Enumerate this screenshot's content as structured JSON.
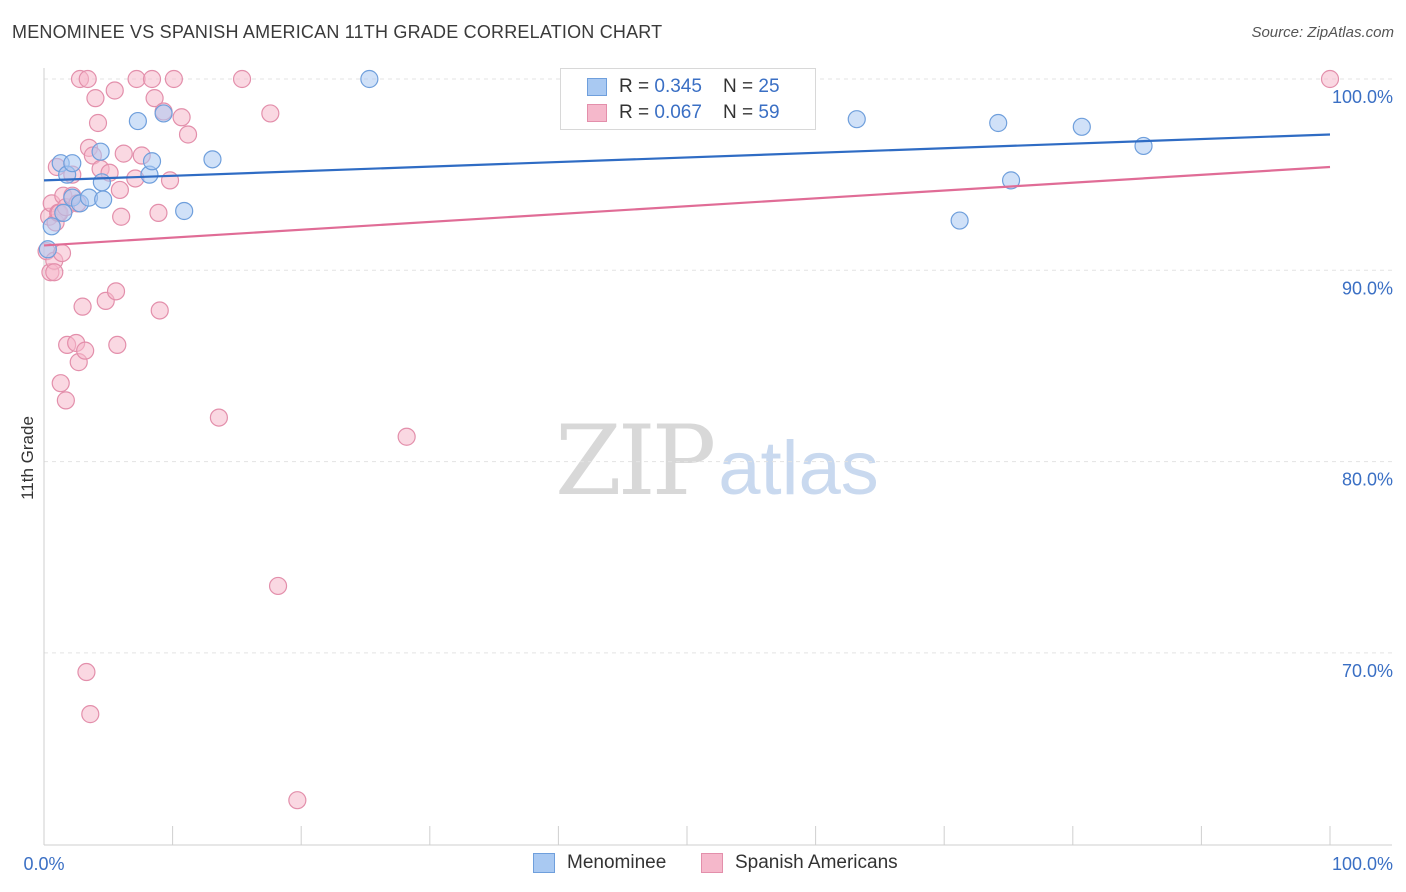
{
  "title": "MENOMINEE VS SPANISH AMERICAN 11TH GRADE CORRELATION CHART",
  "source": "Source: ZipAtlas.com",
  "watermark": {
    "zip": "ZIP",
    "atlas": "atlas"
  },
  "legend_top": [
    {
      "r_label": "R = ",
      "r_value": "0.345",
      "n_label": "N = ",
      "n_value": "25"
    },
    {
      "r_label": "R = ",
      "r_value": "0.067",
      "n_label": "N = ",
      "n_value": "59"
    }
  ],
  "legend_bottom": [
    "Menominee",
    "Spanish Americans"
  ],
  "colors": {
    "menominee_fill": "#a9c9f2",
    "menominee_stroke": "#6f9fdc",
    "menominee_line": "#2f6cc4",
    "spanish_fill": "#f5b8cb",
    "spanish_stroke": "#e38fab",
    "spanish_line": "#e06c96",
    "axis_label": "#3a6fc4",
    "grid": "#e3e3e3"
  },
  "chart_data": {
    "type": "scatter",
    "title": "MENOMINEE VS SPANISH AMERICAN 11TH GRADE CORRELATION CHART",
    "xlabel": "",
    "ylabel": "11th Grade",
    "xlim": [
      0,
      100
    ],
    "ylim": [
      61,
      101.5
    ],
    "x_tick_labels": [
      "0.0%",
      "100.0%"
    ],
    "y_ticks": [
      100,
      90,
      80,
      70
    ],
    "y_tick_labels": [
      "100.0%",
      "90.0%",
      "80.0%",
      "70.0%"
    ],
    "series": [
      {
        "name": "Menominee",
        "r": 0.345,
        "n": 25,
        "trend": [
          [
            0,
            94.7
          ],
          [
            100,
            97.1
          ]
        ],
        "points": [
          [
            0.3,
            91.1
          ],
          [
            0.6,
            92.3
          ],
          [
            1.3,
            95.6
          ],
          [
            1.5,
            93.0
          ],
          [
            1.8,
            95.0
          ],
          [
            2.2,
            93.8
          ],
          [
            2.2,
            95.6
          ],
          [
            2.8,
            93.5
          ],
          [
            3.5,
            93.8
          ],
          [
            4.4,
            96.2
          ],
          [
            4.5,
            94.6
          ],
          [
            4.6,
            93.7
          ],
          [
            7.3,
            97.8
          ],
          [
            8.2,
            95.0
          ],
          [
            8.4,
            95.7
          ],
          [
            9.3,
            98.2
          ],
          [
            10.9,
            93.1
          ],
          [
            13.1,
            95.8
          ],
          [
            25.3,
            100.0
          ],
          [
            63.2,
            97.9
          ],
          [
            71.2,
            92.6
          ],
          [
            74.2,
            97.7
          ],
          [
            75.2,
            94.7
          ],
          [
            80.7,
            97.5
          ],
          [
            85.5,
            96.5
          ]
        ]
      },
      {
        "name": "Spanish Americans",
        "r": 0.067,
        "n": 59,
        "trend": [
          [
            0,
            91.3
          ],
          [
            100,
            95.4
          ]
        ],
        "points": [
          [
            0.2,
            91.0
          ],
          [
            0.4,
            92.8
          ],
          [
            0.5,
            89.9
          ],
          [
            0.6,
            93.5
          ],
          [
            0.8,
            90.5
          ],
          [
            0.8,
            89.9
          ],
          [
            0.9,
            92.5
          ],
          [
            1.0,
            95.4
          ],
          [
            1.1,
            93.0
          ],
          [
            1.2,
            93.0
          ],
          [
            1.3,
            84.1
          ],
          [
            1.4,
            90.9
          ],
          [
            1.5,
            93.9
          ],
          [
            1.7,
            93.3
          ],
          [
            1.7,
            83.2
          ],
          [
            1.8,
            86.1
          ],
          [
            2.2,
            93.9
          ],
          [
            2.2,
            95.0
          ],
          [
            2.5,
            86.2
          ],
          [
            2.6,
            93.5
          ],
          [
            2.7,
            85.2
          ],
          [
            2.8,
            100.0
          ],
          [
            3.0,
            88.1
          ],
          [
            3.2,
            85.8
          ],
          [
            3.3,
            69.0
          ],
          [
            3.4,
            100.0
          ],
          [
            3.5,
            96.4
          ],
          [
            3.6,
            66.8
          ],
          [
            3.8,
            96.0
          ],
          [
            4.0,
            99.0
          ],
          [
            4.2,
            97.7
          ],
          [
            4.4,
            95.3
          ],
          [
            4.8,
            88.4
          ],
          [
            5.1,
            95.1
          ],
          [
            5.5,
            99.4
          ],
          [
            5.6,
            88.9
          ],
          [
            5.7,
            86.1
          ],
          [
            5.9,
            94.2
          ],
          [
            6.0,
            92.8
          ],
          [
            6.2,
            96.1
          ],
          [
            7.1,
            94.8
          ],
          [
            7.2,
            100.0
          ],
          [
            7.6,
            96.0
          ],
          [
            8.4,
            100.0
          ],
          [
            8.6,
            99.0
          ],
          [
            8.9,
            93.0
          ],
          [
            9.0,
            87.9
          ],
          [
            9.3,
            98.3
          ],
          [
            9.8,
            94.7
          ],
          [
            10.1,
            100.0
          ],
          [
            10.7,
            98.0
          ],
          [
            11.2,
            97.1
          ],
          [
            13.6,
            82.3
          ],
          [
            15.4,
            100.0
          ],
          [
            17.6,
            98.2
          ],
          [
            18.2,
            73.5
          ],
          [
            19.7,
            62.3
          ],
          [
            28.2,
            81.3
          ],
          [
            100.0,
            100.0
          ]
        ]
      }
    ]
  }
}
